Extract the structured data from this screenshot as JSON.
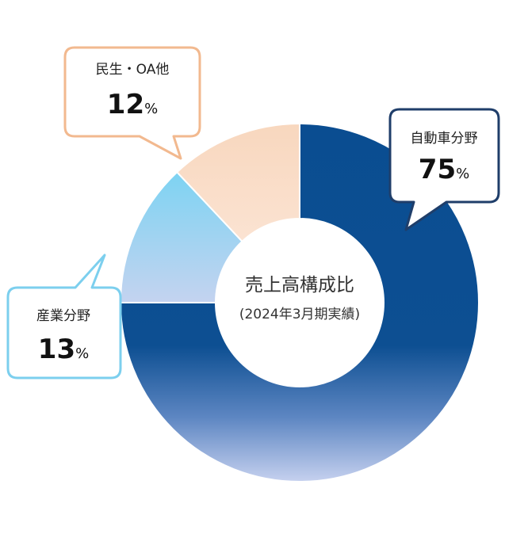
{
  "chart_data": {
    "type": "pie",
    "title": "売上高構成比",
    "subtitle": "(2024年3月期実績)",
    "unit": "%",
    "slices": [
      {
        "label": "自動車分野",
        "value": 75,
        "color": "#0a4d91",
        "color_end": "#c6d1ef",
        "border_color": "#1f3e6a"
      },
      {
        "label": "産業分野",
        "value": 13,
        "color": "#7dd3f2",
        "color_end": "#c4d3f0",
        "border_color": "#7ccfee"
      },
      {
        "label": "民生・OA他",
        "value": 12,
        "color": "#f8d7be",
        "color_end": "#fbe3d2",
        "border_color": "#f2b98f"
      }
    ]
  }
}
